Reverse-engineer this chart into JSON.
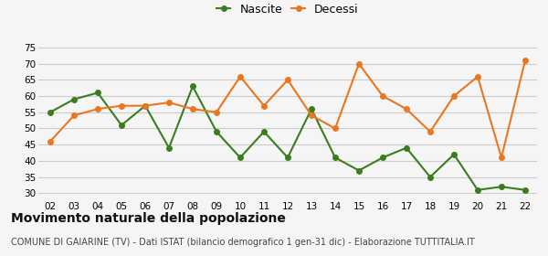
{
  "years": [
    "02",
    "03",
    "04",
    "05",
    "06",
    "07",
    "08",
    "09",
    "10",
    "11",
    "12",
    "13",
    "14",
    "15",
    "16",
    "17",
    "18",
    "19",
    "20",
    "21",
    "22"
  ],
  "nascite": [
    55,
    59,
    61,
    51,
    57,
    44,
    63,
    49,
    41,
    49,
    41,
    56,
    41,
    37,
    41,
    44,
    35,
    42,
    31,
    32,
    31
  ],
  "decessi": [
    46,
    54,
    56,
    57,
    57,
    58,
    56,
    55,
    66,
    57,
    65,
    54,
    50,
    70,
    60,
    56,
    49,
    60,
    66,
    41,
    71
  ],
  "nascite_color": "#3a7d1e",
  "decessi_color": "#e87722",
  "background_color": "#f5f5f5",
  "grid_color": "#cccccc",
  "title": "Movimento naturale della popolazione",
  "subtitle": "COMUNE DI GAIARINE (TV) - Dati ISTAT (bilancio demografico 1 gen-31 dic) - Elaborazione TUTTITALIA.IT",
  "legend_nascite": "Nascite",
  "legend_decessi": "Decessi",
  "ylim": [
    28,
    77
  ],
  "yticks": [
    30,
    35,
    40,
    45,
    50,
    55,
    60,
    65,
    70,
    75
  ],
  "title_fontsize": 10,
  "subtitle_fontsize": 7,
  "marker_size": 4,
  "linewidth": 1.5
}
